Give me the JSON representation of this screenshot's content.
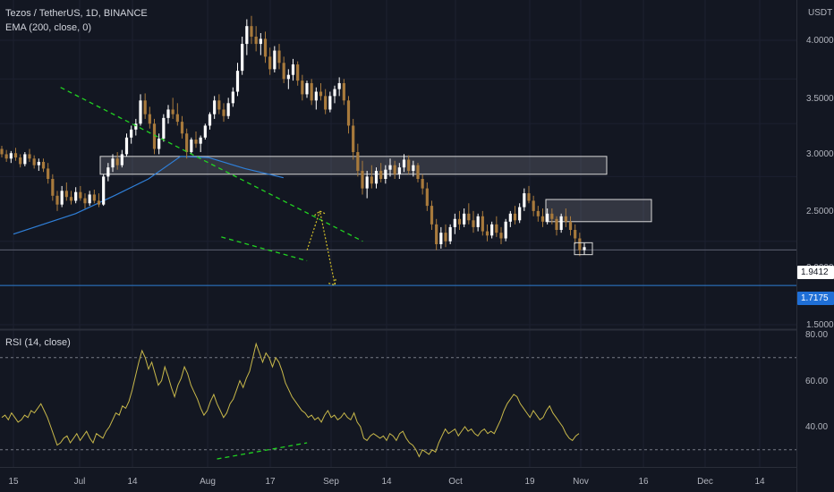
{
  "header": {
    "symbol_title": "Tezos / TetherUS, 1D, BINANCE",
    "indicator_ema": "EMA (200, close, 0)",
    "indicator_rsi": "RSI (14, close)"
  },
  "price_axis": {
    "currency": "USDT",
    "ticks": [
      "4.0000",
      "3.5000",
      "3.0000",
      "2.5000",
      "2.0000",
      "1.5000"
    ],
    "current_price_label": "1.9412",
    "support_label": "1.7175"
  },
  "rsi_axis": {
    "ticks": [
      "80.00",
      "60.00",
      "40.00"
    ]
  },
  "time_axis": {
    "labels": [
      "15",
      "Jul",
      "14",
      "Aug",
      "17",
      "Sep",
      "14",
      "Oct",
      "19",
      "Nov",
      "16",
      "Dec",
      "14"
    ]
  },
  "colors": {
    "background": "#131722",
    "candle_up": "#ffffff",
    "candle_down": "#a87a3c",
    "ema_line": "#2f7fd8",
    "trendline": "#21d321",
    "rsi_line": "#c8b84a",
    "projection": "#d7c32a",
    "support_line": "#2e7fd6",
    "price_tag_bg": "#ffffff",
    "support_tag_bg": "#1f6fd6"
  },
  "chart_data": {
    "type": "candlestick",
    "symbol": "XTZ/USDT",
    "interval": "1D",
    "current_price": 1.9412,
    "support_level": 1.7175,
    "price_range": [
      1.45,
      4.32
    ],
    "rsi_range": [
      22,
      80
    ],
    "rsi_levels": [
      70,
      30
    ],
    "ema_200": [
      {
        "date": "Jun 15",
        "value": 2.05
      },
      {
        "date": "Jul 14",
        "value": 2.2
      },
      {
        "date": "Aug 1",
        "value": 2.34
      },
      {
        "date": "Aug 17",
        "value": 2.48
      },
      {
        "date": "Sep 1",
        "value": 2.68
      },
      {
        "date": "Sep 14",
        "value": 2.67
      },
      {
        "date": "Oct 1",
        "value": 2.57
      },
      {
        "date": "Oct 19",
        "value": 2.49
      }
    ],
    "zones": [
      {
        "name": "upper",
        "low": 2.52,
        "high": 2.68
      },
      {
        "name": "lower",
        "low": 2.14,
        "high": 2.31
      }
    ],
    "trendlines": [
      {
        "style": "dashed",
        "from": {
          "date": "Jul 7",
          "value": 3.4
        },
        "to": {
          "date": "Nov 25",
          "value": 2.0
        }
      },
      {
        "style": "dashed",
        "from": {
          "date": "Sep 20",
          "value": 2.03
        },
        "to": {
          "date": "Oct 30",
          "value": 1.87
        }
      }
    ],
    "rsi_trendline": {
      "from": {
        "date": "Sep 18",
        "value": 26
      },
      "to": {
        "date": "Oct 30",
        "value": 33
      }
    },
    "projection": [
      {
        "date": "Oct 30",
        "value": 1.94
      },
      {
        "date": "Nov 5",
        "value": 2.22
      },
      {
        "date": "Nov 12",
        "value": 1.72
      }
    ],
    "rsi": [
      44,
      45,
      43,
      46,
      44,
      42,
      43,
      45,
      44,
      47,
      46,
      48,
      50,
      47,
      44,
      40,
      36,
      32,
      33,
      35,
      36,
      33,
      35,
      37,
      34,
      36,
      38,
      35,
      33,
      37,
      36,
      35,
      38,
      40,
      43,
      46,
      45,
      49,
      48,
      51,
      56,
      62,
      68,
      73,
      70,
      65,
      68,
      63,
      58,
      60,
      66,
      62,
      57,
      53,
      58,
      61,
      66,
      63,
      58,
      55,
      52,
      48,
      45,
      47,
      51,
      54,
      50,
      47,
      44,
      46,
      50,
      52,
      56,
      60,
      57,
      61,
      64,
      70,
      76,
      72,
      68,
      72,
      70,
      66,
      70,
      68,
      64,
      59,
      56,
      53,
      51,
      49,
      47,
      46,
      44,
      45,
      43,
      44,
      42,
      45,
      47,
      44,
      45,
      43,
      44,
      46,
      44,
      43,
      46,
      42,
      40,
      35,
      34,
      36,
      37,
      36,
      35,
      36,
      34,
      37,
      36,
      34,
      37,
      38,
      35,
      33,
      32,
      30,
      27,
      30,
      29,
      28,
      30,
      29,
      33,
      36,
      39,
      37,
      38,
      39,
      36,
      38,
      40,
      38,
      39,
      37,
      36,
      38,
      39,
      37,
      38,
      37,
      40,
      43,
      47,
      50,
      52,
      54,
      53,
      50,
      48,
      46,
      44,
      47,
      45,
      43,
      44,
      47,
      49,
      46,
      44,
      42,
      40,
      37,
      35,
      34,
      36,
      37
    ],
    "candles": [
      [
        2.75,
        2.78,
        2.67,
        2.7
      ],
      [
        2.7,
        2.74,
        2.63,
        2.66
      ],
      [
        2.66,
        2.73,
        2.62,
        2.71
      ],
      [
        2.71,
        2.76,
        2.64,
        2.67
      ],
      [
        2.67,
        2.7,
        2.58,
        2.61
      ],
      [
        2.61,
        2.72,
        2.59,
        2.7
      ],
      [
        2.7,
        2.75,
        2.63,
        2.66
      ],
      [
        2.66,
        2.69,
        2.57,
        2.6
      ],
      [
        2.6,
        2.66,
        2.55,
        2.63
      ],
      [
        2.63,
        2.66,
        2.54,
        2.57
      ],
      [
        2.57,
        2.62,
        2.44,
        2.48
      ],
      [
        2.48,
        2.52,
        2.3,
        2.34
      ],
      [
        2.34,
        2.38,
        2.22,
        2.27
      ],
      [
        2.27,
        2.42,
        2.25,
        2.38
      ],
      [
        2.38,
        2.45,
        2.3,
        2.33
      ],
      [
        2.33,
        2.38,
        2.27,
        2.3
      ],
      [
        2.3,
        2.41,
        2.28,
        2.37
      ],
      [
        2.37,
        2.42,
        2.3,
        2.32
      ],
      [
        2.32,
        2.36,
        2.24,
        2.28
      ],
      [
        2.28,
        2.38,
        2.26,
        2.35
      ],
      [
        2.35,
        2.39,
        2.28,
        2.3
      ],
      [
        2.3,
        2.36,
        2.25,
        2.27
      ],
      [
        2.27,
        2.52,
        2.26,
        2.5
      ],
      [
        2.5,
        2.62,
        2.46,
        2.58
      ],
      [
        2.58,
        2.7,
        2.54,
        2.66
      ],
      [
        2.66,
        2.72,
        2.56,
        2.6
      ],
      [
        2.6,
        2.74,
        2.58,
        2.7
      ],
      [
        2.7,
        2.9,
        2.68,
        2.86
      ],
      [
        2.86,
        2.98,
        2.8,
        2.94
      ],
      [
        2.94,
        3.05,
        2.88,
        3.0
      ],
      [
        3.0,
        3.32,
        2.98,
        3.25
      ],
      [
        3.25,
        3.33,
        3.05,
        3.1
      ],
      [
        3.1,
        3.18,
        2.95,
        3.0
      ],
      [
        3.0,
        3.05,
        2.7,
        2.75
      ],
      [
        2.75,
        2.9,
        2.7,
        2.85
      ],
      [
        2.85,
        3.1,
        2.82,
        3.06
      ],
      [
        3.06,
        3.2,
        3.0,
        3.15
      ],
      [
        3.15,
        3.28,
        3.05,
        3.1
      ],
      [
        3.1,
        3.22,
        2.98,
        3.02
      ],
      [
        3.02,
        3.08,
        2.85,
        2.9
      ],
      [
        2.9,
        2.95,
        2.66,
        2.72
      ],
      [
        2.72,
        2.86,
        2.7,
        2.84
      ],
      [
        2.84,
        2.92,
        2.76,
        2.8
      ],
      [
        2.8,
        2.88,
        2.72,
        2.86
      ],
      [
        2.86,
        3.0,
        2.84,
        2.98
      ],
      [
        2.98,
        3.12,
        2.94,
        3.1
      ],
      [
        3.1,
        3.3,
        3.05,
        3.25
      ],
      [
        3.25,
        3.32,
        3.1,
        3.15
      ],
      [
        3.15,
        3.22,
        3.02,
        3.08
      ],
      [
        3.08,
        3.28,
        3.05,
        3.22
      ],
      [
        3.22,
        3.4,
        3.18,
        3.35
      ],
      [
        3.35,
        3.7,
        3.3,
        3.6
      ],
      [
        3.6,
        4.05,
        3.55,
        3.95
      ],
      [
        3.95,
        4.3,
        3.8,
        4.2
      ],
      [
        4.2,
        4.35,
        3.95,
        4.05
      ],
      [
        4.05,
        4.2,
        3.85,
        3.95
      ],
      [
        3.95,
        4.1,
        3.8,
        4.02
      ],
      [
        4.02,
        4.12,
        3.7,
        3.78
      ],
      [
        3.78,
        3.9,
        3.55,
        3.62
      ],
      [
        3.62,
        3.92,
        3.58,
        3.86
      ],
      [
        3.86,
        3.95,
        3.62,
        3.7
      ],
      [
        3.7,
        3.78,
        3.45,
        3.5
      ],
      [
        3.5,
        3.62,
        3.38,
        3.55
      ],
      [
        3.55,
        3.75,
        3.48,
        3.68
      ],
      [
        3.68,
        3.72,
        3.42,
        3.48
      ],
      [
        3.48,
        3.55,
        3.25,
        3.32
      ],
      [
        3.32,
        3.48,
        3.28,
        3.45
      ],
      [
        3.45,
        3.5,
        3.2,
        3.25
      ],
      [
        3.25,
        3.4,
        3.15,
        3.35
      ],
      [
        3.35,
        3.45,
        3.25,
        3.3
      ],
      [
        3.3,
        3.38,
        3.1,
        3.15
      ],
      [
        3.15,
        3.35,
        3.12,
        3.3
      ],
      [
        3.3,
        3.42,
        3.22,
        3.38
      ],
      [
        3.38,
        3.52,
        3.3,
        3.45
      ],
      [
        3.45,
        3.5,
        3.2,
        3.25
      ],
      [
        3.25,
        3.3,
        2.9,
        2.98
      ],
      [
        2.98,
        3.05,
        2.65,
        2.72
      ],
      [
        2.72,
        2.8,
        2.5,
        2.55
      ],
      [
        2.55,
        2.64,
        2.35,
        2.4
      ],
      [
        2.4,
        2.55,
        2.32,
        2.5
      ],
      [
        2.5,
        2.6,
        2.4,
        2.44
      ],
      [
        2.44,
        2.58,
        2.4,
        2.55
      ],
      [
        2.55,
        2.62,
        2.45,
        2.48
      ],
      [
        2.48,
        2.6,
        2.44,
        2.56
      ],
      [
        2.56,
        2.66,
        2.5,
        2.6
      ],
      [
        2.6,
        2.64,
        2.48,
        2.52
      ],
      [
        2.52,
        2.62,
        2.48,
        2.58
      ],
      [
        2.58,
        2.7,
        2.54,
        2.65
      ],
      [
        2.65,
        2.69,
        2.52,
        2.55
      ],
      [
        2.55,
        2.64,
        2.5,
        2.6
      ],
      [
        2.6,
        2.62,
        2.45,
        2.48
      ],
      [
        2.48,
        2.52,
        2.35,
        2.4
      ],
      [
        2.4,
        2.45,
        2.22,
        2.26
      ],
      [
        2.26,
        2.3,
        2.08,
        2.12
      ],
      [
        2.12,
        2.16,
        1.94,
        1.98
      ],
      [
        1.98,
        2.1,
        1.95,
        2.06
      ],
      [
        2.06,
        2.12,
        1.96,
        2.0
      ],
      [
        2.0,
        2.12,
        1.98,
        2.1
      ],
      [
        2.1,
        2.2,
        2.05,
        2.16
      ],
      [
        2.16,
        2.22,
        2.08,
        2.12
      ],
      [
        2.12,
        2.24,
        2.1,
        2.2
      ],
      [
        2.2,
        2.28,
        2.12,
        2.15
      ],
      [
        2.15,
        2.22,
        2.06,
        2.1
      ],
      [
        2.1,
        2.2,
        2.07,
        2.18
      ],
      [
        2.18,
        2.22,
        2.04,
        2.07
      ],
      [
        2.07,
        2.12,
        2.0,
        2.04
      ],
      [
        2.04,
        2.14,
        2.02,
        2.12
      ],
      [
        2.12,
        2.18,
        2.03,
        2.06
      ],
      [
        2.06,
        2.1,
        1.98,
        2.02
      ],
      [
        2.02,
        2.16,
        2.0,
        2.14
      ],
      [
        2.14,
        2.22,
        2.1,
        2.2
      ],
      [
        2.2,
        2.26,
        2.12,
        2.15
      ],
      [
        2.15,
        2.28,
        2.13,
        2.25
      ],
      [
        2.25,
        2.4,
        2.22,
        2.36
      ],
      [
        2.36,
        2.42,
        2.28,
        2.3
      ],
      [
        2.3,
        2.34,
        2.18,
        2.22
      ],
      [
        2.22,
        2.26,
        2.14,
        2.18
      ],
      [
        2.18,
        2.24,
        2.1,
        2.14
      ],
      [
        2.14,
        2.24,
        2.12,
        2.2
      ],
      [
        2.2,
        2.24,
        2.12,
        2.16
      ],
      [
        2.16,
        2.18,
        2.04,
        2.08
      ],
      [
        2.08,
        2.2,
        2.06,
        2.18
      ],
      [
        2.18,
        2.24,
        2.1,
        2.14
      ],
      [
        2.14,
        2.18,
        2.04,
        2.08
      ],
      [
        2.08,
        2.12,
        1.98,
        2.02
      ],
      [
        2.02,
        2.06,
        1.9,
        1.94
      ],
      [
        1.94,
        1.99,
        1.91,
        1.96
      ]
    ]
  }
}
